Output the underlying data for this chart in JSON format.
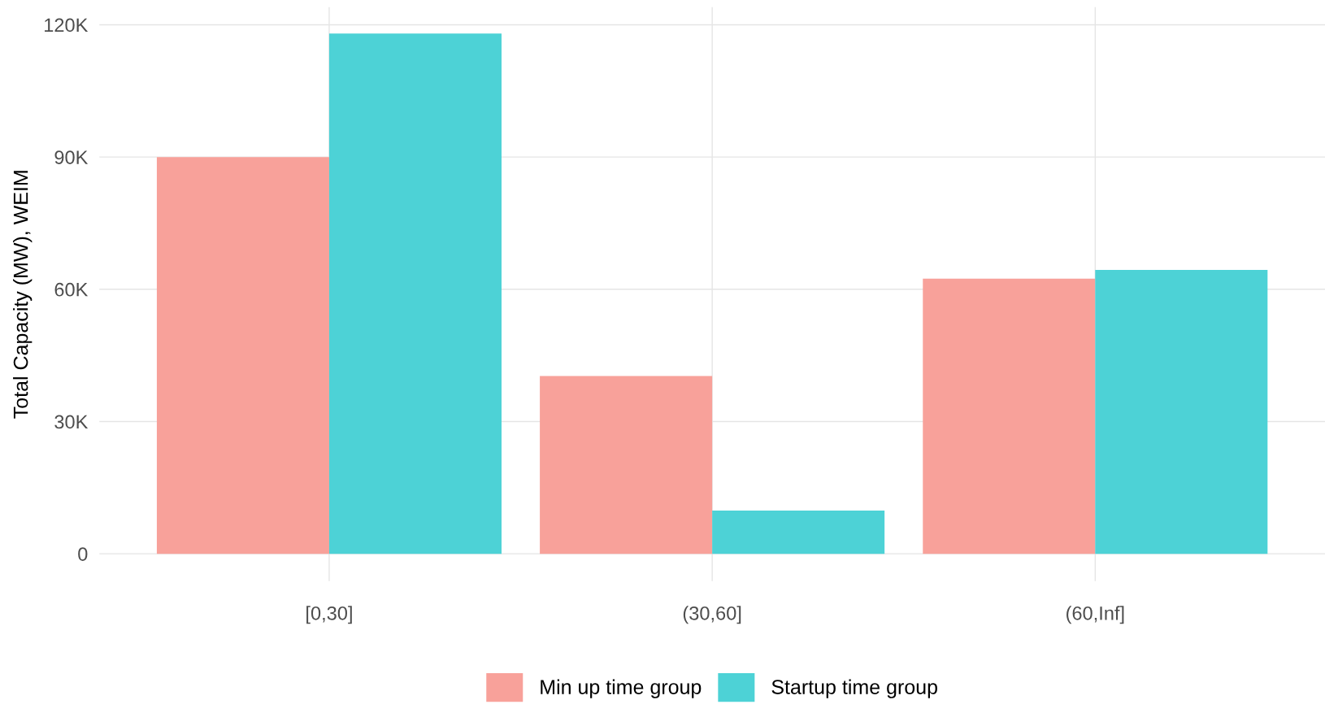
{
  "chart_data": {
    "type": "bar",
    "ylabel": "Total Capacity (MW), WEIM",
    "categories": [
      "[0,30]",
      "(30,60]",
      "(60,Inf]"
    ],
    "series": [
      {
        "name": "Min up time group",
        "color": "#f8a19a",
        "values": [
          90000,
          40300,
          62400
        ]
      },
      {
        "name": "Startup time group",
        "color": "#4dd2d6",
        "values": [
          118000,
          9800,
          64400
        ]
      }
    ],
    "ylim": [
      -6200,
      124000
    ],
    "yticks": [
      {
        "value": 0,
        "label": "0"
      },
      {
        "value": 30000,
        "label": "30K"
      },
      {
        "value": 60000,
        "label": "60K"
      },
      {
        "value": 90000,
        "label": "90K"
      },
      {
        "value": 120000,
        "label": "120K"
      }
    ],
    "grid": true,
    "legend": "bottom"
  }
}
